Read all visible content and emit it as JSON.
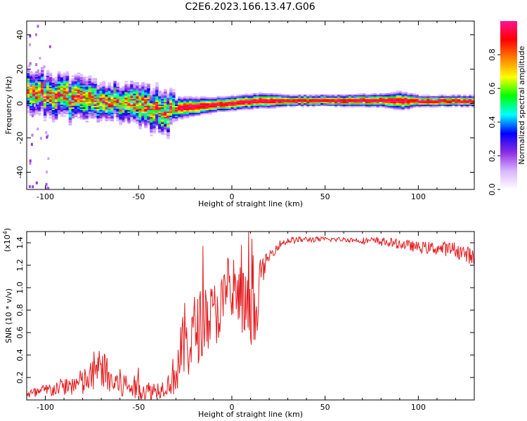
{
  "title": "C2E6.2023.166.13.47.G06",
  "chart_data": [
    {
      "type": "heatmap",
      "xlabel": "Height of straight line (km)",
      "ylabel": "Frequency (Hz)",
      "xlim": [
        -110,
        130
      ],
      "ylim": [
        -50,
        48
      ],
      "x_ticks": [
        -100,
        -50,
        0,
        50,
        100
      ],
      "y_ticks": [
        -40,
        -20,
        0,
        20,
        40
      ],
      "ridge": {
        "x": [
          -108,
          -100,
          -90,
          -80,
          -70,
          -60,
          -50,
          -40,
          -35,
          -30,
          -20,
          -10,
          0,
          10,
          20,
          30,
          50,
          80,
          90,
          100,
          110,
          130
        ],
        "freq": [
          7,
          5,
          3,
          2,
          1,
          0,
          -2,
          -4,
          -5,
          -3,
          -2,
          -1,
          0,
          1,
          1.5,
          1.5,
          1.5,
          1.5,
          1.2,
          1.2,
          1.2,
          1.2
        ],
        "spread": [
          6,
          6,
          6,
          6,
          5,
          5,
          6,
          6,
          6,
          3,
          2.5,
          2,
          2,
          2,
          2,
          1.5,
          1.5,
          1.8,
          2.5,
          1.5,
          1.5,
          1.5
        ]
      },
      "colorbar": {
        "label": "Normalized spectral amplitude",
        "range": [
          0,
          1
        ],
        "ticks": [
          0.0,
          0.2,
          0.4,
          0.6,
          0.8
        ],
        "colors": [
          "#ffffff",
          "#d8b4ff",
          "#8a2be2",
          "#0000ff",
          "#00ffff",
          "#00ff00",
          "#ffff00",
          "#ff8000",
          "#ff0000",
          "#ff1493"
        ]
      }
    },
    {
      "type": "line",
      "xlabel": "Height of straight line (km)",
      "ylabel": "SNR (10 * v/v)",
      "multiplier": "(x10",
      "multiplier_exp": "4",
      "multiplier_close": ")",
      "xlim": [
        -110,
        130
      ],
      "ylim": [
        0,
        1.5
      ],
      "x_ticks": [
        -100,
        -50,
        0,
        50,
        100
      ],
      "y_ticks": [
        0.2,
        0.4,
        0.6,
        0.8,
        1.0,
        1.2,
        1.4
      ],
      "color": "#e41a1c",
      "profile": {
        "x": [
          -110,
          -100,
          -90,
          -80,
          -75,
          -70,
          -65,
          -60,
          -55,
          -50,
          -45,
          -40,
          -35,
          -30,
          -27,
          -25,
          -22,
          -20,
          -15,
          -10,
          -5,
          0,
          5,
          10,
          13,
          15,
          20,
          25,
          30,
          40,
          50,
          60,
          70,
          80,
          90,
          100,
          110,
          120,
          125,
          130
        ],
        "y": [
          0.04,
          0.08,
          0.12,
          0.15,
          0.2,
          0.3,
          0.16,
          0.14,
          0.12,
          0.1,
          0.08,
          0.09,
          0.12,
          0.25,
          0.4,
          0.55,
          0.5,
          0.62,
          0.7,
          0.75,
          0.85,
          0.9,
          0.9,
          0.7,
          0.72,
          1.1,
          1.28,
          1.38,
          1.42,
          1.43,
          1.43,
          1.43,
          1.42,
          1.41,
          1.39,
          1.36,
          1.35,
          1.34,
          1.3,
          1.28
        ]
      },
      "noise": {
        "x": [
          -110,
          -90,
          -70,
          -50,
          -35,
          -25,
          -10,
          0,
          10,
          15,
          20,
          30,
          60,
          80,
          100,
          130
        ],
        "amp": [
          0.05,
          0.08,
          0.18,
          0.1,
          0.08,
          0.35,
          0.3,
          0.3,
          0.35,
          0.15,
          0.05,
          0.03,
          0.02,
          0.04,
          0.05,
          0.08
        ]
      }
    }
  ]
}
